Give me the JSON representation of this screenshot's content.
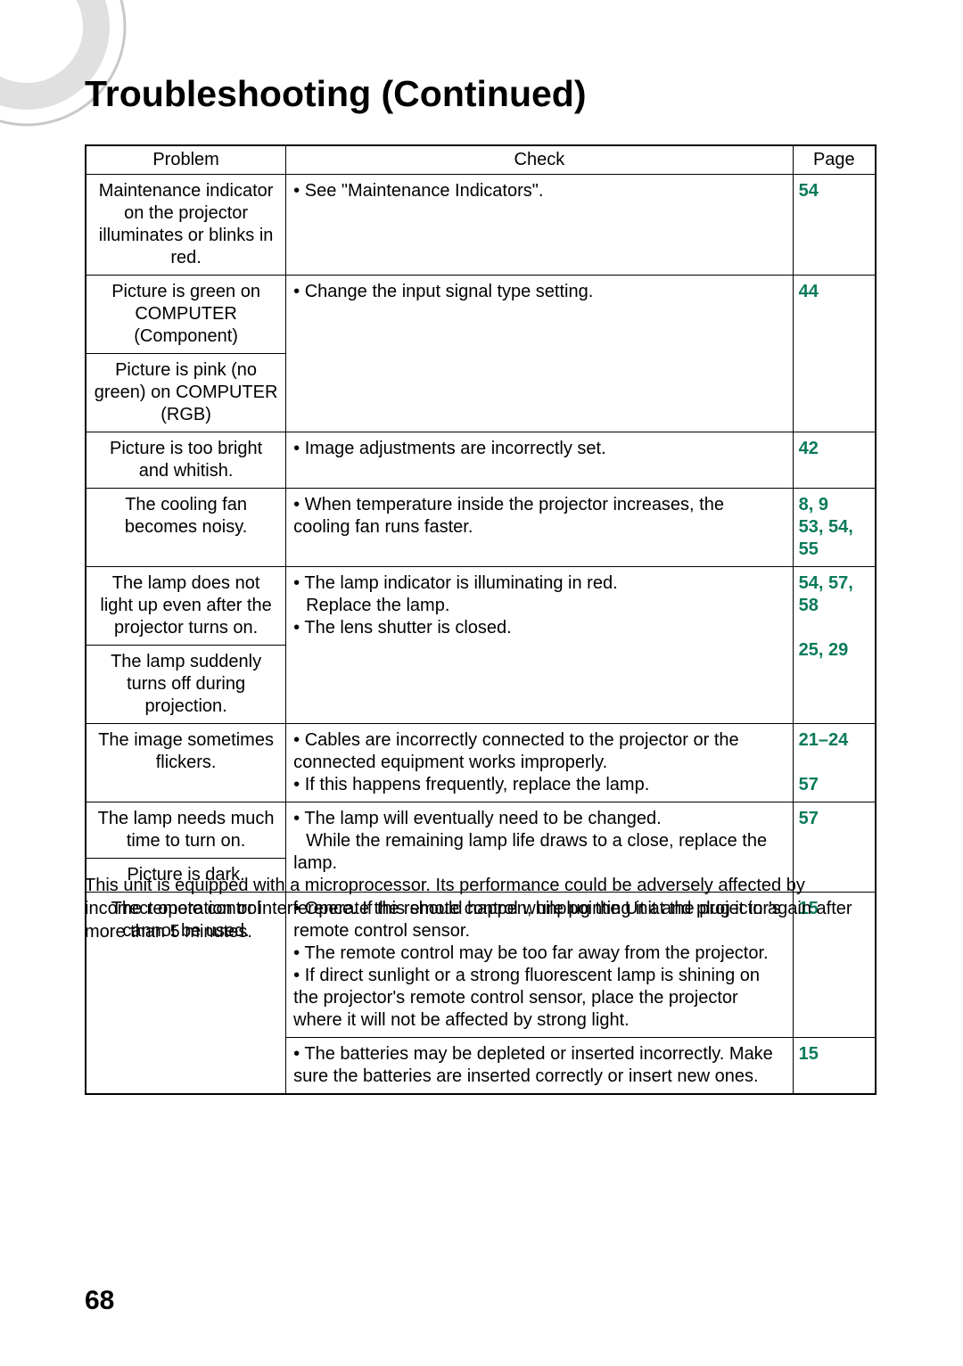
{
  "title": "Troubleshooting (Continued)",
  "page_number": "68",
  "link_color": "#0a7a5a",
  "headers": {
    "problem": "Problem",
    "check": "Check",
    "page": "Page"
  },
  "rows": [
    {
      "problem": "Maintenance indicator on the projector illuminates or blinks in red.",
      "check": "• See \"Maintenance Indicators\".",
      "page_lines": [
        "54"
      ]
    },
    {
      "problem": "Picture is green on COMPUTER (Component)",
      "check": "• Change the input signal type setting.",
      "page_lines": [
        "44"
      ],
      "merge_down": 1
    },
    {
      "problem": "Picture is pink (no green) on COMPUTER (RGB)"
    },
    {
      "problem": "Picture is too bright and whitish.",
      "check": "• Image adjustments are incorrectly set.",
      "page_lines": [
        "42"
      ]
    },
    {
      "problem": "The cooling fan becomes noisy.",
      "check": "• When temperature inside the projector increases, the cooling fan runs faster.",
      "page_lines": [
        "8, 9",
        "53, 54, 55"
      ]
    },
    {
      "problem": "The lamp does not light up even after the projector turns on.",
      "check": "• The lamp indicator is illuminating in red.\n  Replace the lamp.\n• The lens shutter is closed.",
      "page_lines": [
        "54, 57, 58",
        "",
        "25, 29"
      ],
      "merge_down": 1
    },
    {
      "problem": "The lamp suddenly turns off during projection."
    },
    {
      "problem": "The image sometimes flickers.",
      "check": "• Cables are incorrectly connected to the projector or the connected equipment works improperly.\n• If this happens frequently, replace the lamp.",
      "page_lines": [
        "21–24",
        "",
        "57"
      ]
    },
    {
      "problem": "The lamp needs much time to turn on.",
      "check": "• The lamp will eventually need to be changed.\n  While the remaining lamp life draws to a close, replace the lamp.",
      "page_lines": [
        "57"
      ],
      "merge_down": 1
    },
    {
      "problem": "Picture is dark."
    },
    {
      "problem": "The remote control cannot be used.",
      "check": "• Operate the remote control while pointing it at the projector's remote control sensor.\n• The remote control may be too far away from the projector.\n• If direct sunlight or a strong fluorescent lamp is shining on the projector's remote control sensor, place the projector where it will not be affected by strong light.",
      "page_lines": [
        "15"
      ],
      "merge_down_problem_only": 1
    },
    {
      "problem_merged": true,
      "check": "• The batteries may be depleted or inserted incorrectly. Make sure the batteries are inserted correctly or insert new ones.",
      "page_lines": [
        "15"
      ]
    }
  ],
  "note": "This unit is equipped with a microprocessor. Its performance could be adversely affected by incorrect operation or interference. If this should happen, unplug the Unit and plug it in again after more than 5 minutes."
}
